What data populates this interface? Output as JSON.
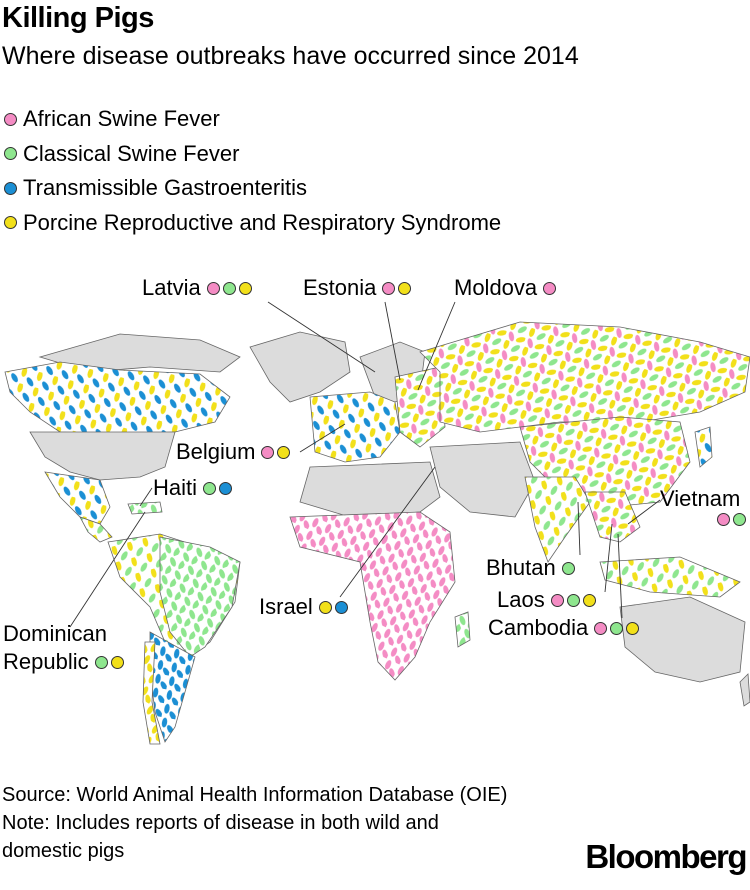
{
  "title": "Killing Pigs",
  "subtitle": "Where disease outbreaks have occurred since 2014",
  "legend": [
    {
      "label": "African Swine Fever",
      "color": "#f48cc4"
    },
    {
      "label": "Classical Swine Fever",
      "color": "#8ee68e"
    },
    {
      "label": "Transmissible Gastroenteritis",
      "color": "#1b8fd4"
    },
    {
      "label": "Porcine Reproductive and Respiratory Syndrome",
      "color": "#f2e01a"
    }
  ],
  "countries": {
    "latvia": {
      "name": "Latvia",
      "diseases": [
        "asf",
        "csf",
        "prrs"
      ]
    },
    "estonia": {
      "name": "Estonia",
      "diseases": [
        "asf",
        "prrs"
      ]
    },
    "moldova": {
      "name": "Moldova",
      "diseases": [
        "asf"
      ]
    },
    "belgium": {
      "name": "Belgium",
      "diseases": [
        "asf",
        "prrs"
      ]
    },
    "haiti": {
      "name": "Haiti",
      "diseases": [
        "csf",
        "tge"
      ]
    },
    "vietnam": {
      "name": "Vietnam",
      "diseases": [
        "asf",
        "csf"
      ]
    },
    "bhutan": {
      "name": "Bhutan",
      "diseases": [
        "csf"
      ]
    },
    "laos": {
      "name": "Laos",
      "diseases": [
        "asf",
        "csf",
        "prrs"
      ]
    },
    "cambodia": {
      "name": "Cambodia",
      "diseases": [
        "asf",
        "csf",
        "prrs"
      ]
    },
    "israel": {
      "name": "Israel",
      "diseases": [
        "prrs",
        "tge"
      ]
    },
    "dominican": {
      "name_line1": "Dominican",
      "name_line2": "Republic",
      "diseases": [
        "csf",
        "prrs"
      ]
    }
  },
  "source": "Source: World Animal Health Information Database (OIE)",
  "note": "Note: Includes reports of disease in both wild and domestic pigs",
  "logo": "Bloomberg"
}
